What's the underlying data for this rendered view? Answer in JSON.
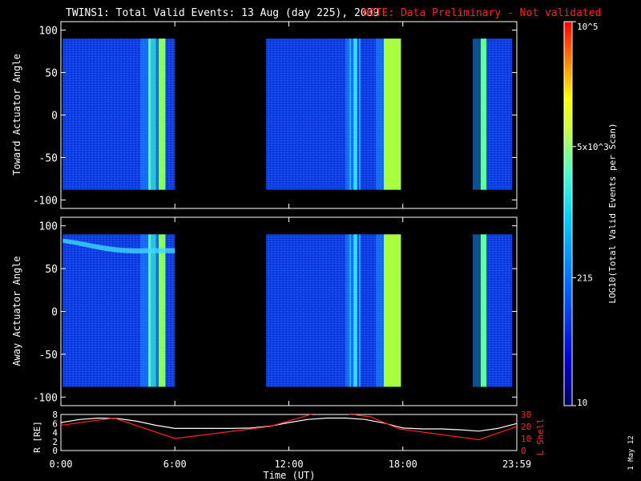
{
  "title": "TWINS1: Total Valid Events: 13 Aug (day 225), 2009",
  "note": "NOTE: Data Preliminary - Not validated",
  "footer_date": "1 May 12",
  "colors": {
    "background": "#000000",
    "text": "#ffffff",
    "note": "#ff2020",
    "lshell": "#ff2020"
  },
  "chart_data": [
    {
      "type": "heatmap",
      "panel": "toward",
      "ylabel": "Toward Actuator Angle",
      "ylim": [
        -110,
        110
      ],
      "yticks": [
        100,
        50,
        0,
        -50,
        -100
      ],
      "xlim": [
        0,
        24
      ],
      "data_segments_hours": [
        [
          0.1,
          6.0
        ],
        [
          10.8,
          17.9
        ],
        [
          22.1,
          23.75
        ]
      ],
      "bright_bands_hours": [
        [
          4.6,
          5.0
        ],
        [
          5.15,
          5.5
        ],
        [
          15.4,
          15.6
        ],
        [
          17.0,
          17.9
        ],
        [
          22.1,
          22.4
        ]
      ],
      "angle_range": [
        -88,
        90
      ]
    },
    {
      "type": "heatmap",
      "panel": "away",
      "ylabel": "Away Actuator Angle",
      "ylim": [
        -110,
        110
      ],
      "yticks": [
        100,
        50,
        0,
        -50,
        -100
      ],
      "xlim": [
        0,
        24
      ],
      "data_segments_hours": [
        [
          0.1,
          6.0
        ],
        [
          10.8,
          17.9
        ],
        [
          22.1,
          23.75
        ]
      ],
      "bright_bands_hours": [
        [
          4.6,
          5.0
        ],
        [
          5.15,
          5.5
        ],
        [
          15.4,
          15.6
        ],
        [
          17.0,
          17.9
        ],
        [
          22.1,
          22.4
        ]
      ],
      "angle_range": [
        -88,
        90
      ]
    },
    {
      "type": "line",
      "panel": "orbit",
      "ylabel": "R [RE]",
      "y2label": "L Shell",
      "xlabel": "Time (UT)",
      "xticks": [
        "0:00",
        "6:00",
        "12:00",
        "18:00",
        "23:59"
      ],
      "xlim": [
        0,
        24
      ],
      "ylim": [
        0,
        8
      ],
      "yticks": [
        0,
        2,
        4,
        6,
        8
      ],
      "y2lim": [
        0,
        30
      ],
      "y2ticks": [
        0,
        10,
        20,
        30
      ],
      "series": [
        {
          "name": "R [RE]",
          "axis": "left",
          "x": [
            0,
            1,
            2,
            3,
            4,
            5,
            6,
            7,
            8,
            9,
            10,
            11,
            12,
            13,
            14,
            15,
            16,
            17,
            18,
            19,
            20,
            21,
            22,
            23,
            24
          ],
          "y": [
            6.2,
            6.9,
            7.2,
            7.1,
            6.5,
            5.6,
            4.9,
            4.9,
            4.9,
            4.9,
            5.0,
            5.4,
            6.2,
            6.9,
            7.2,
            7.2,
            6.9,
            6.1,
            5.0,
            4.8,
            4.8,
            4.6,
            4.3,
            4.9,
            6.0
          ]
        },
        {
          "name": "L Shell",
          "axis": "right",
          "x": [
            0,
            2.8,
            6,
            11,
            13.8,
            16.3,
            17.8,
            22,
            24
          ],
          "y": [
            21,
            27,
            10,
            20,
            33,
            28,
            18,
            9,
            20
          ]
        }
      ]
    },
    {
      "type": "colorbar",
      "label": "LOG10(Total Valid Events per Scan)",
      "scale": "log",
      "range": [
        10,
        100000
      ],
      "ticks": [
        {
          "value": 100000,
          "label": "10^5"
        },
        {
          "value": 5000,
          "label": "5x10^3"
        },
        {
          "value": 215,
          "label": "215"
        },
        {
          "value": 10,
          "label": "10"
        }
      ],
      "gradient": [
        "#000060",
        "#0000d0",
        "#0060ff",
        "#00c8ff",
        "#40ffd0",
        "#c8ff40",
        "#ffff00",
        "#ff8000",
        "#ff0000"
      ]
    }
  ]
}
